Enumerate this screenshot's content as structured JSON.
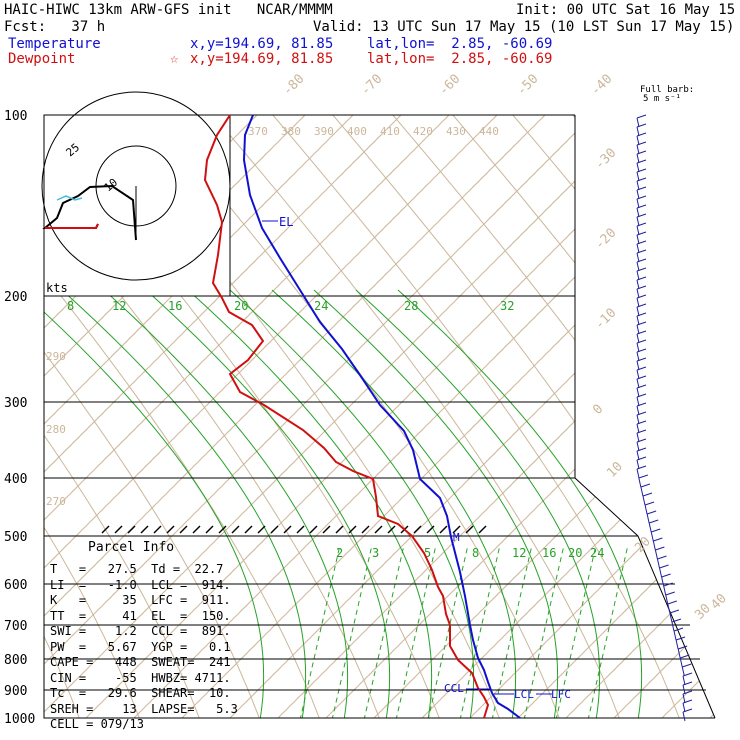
{
  "header": {
    "line1_left": "HAIC-HIWC 13km ARW-GFS init   NCAR/MMMM",
    "line1_right": "Init: 00 UTC Sat 16 May 15",
    "line2_left": "Fcst:   37 h",
    "line2_right": "Valid: 13 UTC Sun 17 May 15 (10 LST Sun 17 May 15)",
    "temp_label": "Temperature",
    "temp_loc": "x,y=194.69, 81.85    lat,lon=  2.85, -60.69",
    "dew_label": "Dewpoint",
    "dew_loc": "x,y=194.69, 81.85    lat,lon=  2.85, -60.69",
    "dew_star": "☆"
  },
  "barb_legend": {
    "line1": "Full barb:",
    "line2": "5 m s⁻¹"
  },
  "chart_data": {
    "type": "line",
    "pressure_labels": [
      "100",
      "200",
      "300",
      "400",
      "500",
      "600",
      "700",
      "800",
      "900",
      "1000"
    ],
    "temp_isotherm_labels": [
      "-80",
      "-70",
      "-60",
      "-50",
      "-40",
      "-30",
      "-20",
      "-10",
      "0",
      "10",
      "20",
      "30",
      "40"
    ],
    "theta_labels": [
      "370",
      "380",
      "390",
      "400",
      "410",
      "420",
      "430",
      "440"
    ],
    "theta_low_labels": [
      "290",
      "280",
      "270"
    ],
    "mixing_upper_labels": [
      "8",
      "12",
      "16",
      "20",
      "24",
      "28",
      "32"
    ],
    "mixing_lower_labels": [
      "2",
      "3",
      "5",
      "8",
      "12",
      "16",
      "20",
      "24"
    ],
    "level_labels": {
      "el": "EL",
      "ccl": "CCL",
      "lcl": "LCL",
      "lfc": "LFC",
      "m": "M"
    },
    "hodograph": {
      "ring_labels": [
        "25",
        "10"
      ],
      "units": "kts"
    },
    "series": [
      {
        "name": "Temperature",
        "color": "#1010d0"
      },
      {
        "name": "Dewpoint",
        "color": "#d01010"
      }
    ]
  },
  "parcel_info": {
    "title": "Parcel Info",
    "rows": [
      "T   =   27.5  Td =  22.7",
      "LI  =   -1.0  LCL =  914.",
      "K   =     35  LFC =  911.",
      "TT  =     41  EL  =  150.",
      "SWI =    1.2  CCL =  891.",
      "PW  =   5.67  YGP =   0.1",
      "CAPE =   448  SWEAT=  241",
      "CIN =    -55  HWBZ= 4711.",
      "Tc  =   29.6  SHEAR=  10.",
      "SREH =    13  LAPSE=   5.3",
      "CELL = 079/13"
    ]
  }
}
